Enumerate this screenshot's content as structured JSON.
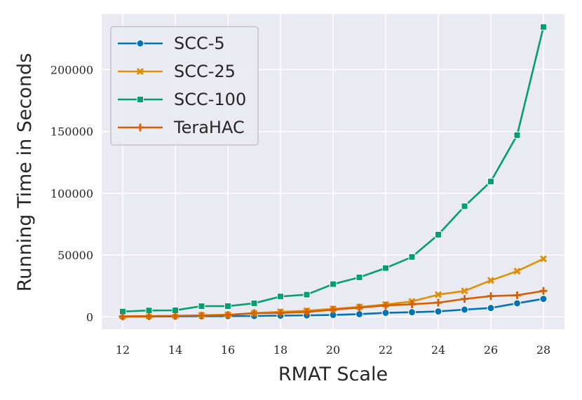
{
  "chart_data": {
    "type": "line",
    "title": "",
    "xlabel": "RMAT Scale",
    "ylabel": "Running Time in Seconds",
    "xlim": [
      11.2,
      28.8
    ],
    "ylim": [
      -10000,
      245000
    ],
    "xticks": [
      12,
      14,
      16,
      18,
      20,
      22,
      24,
      26,
      28
    ],
    "yticks": [
      0,
      50000,
      100000,
      150000,
      200000
    ],
    "grid": true,
    "legend_position": "upper-left",
    "x": [
      12,
      13,
      14,
      15,
      16,
      17,
      18,
      19,
      20,
      21,
      22,
      23,
      24,
      25,
      26,
      27,
      28
    ],
    "series": [
      {
        "name": "SCC-5",
        "color": "#0173b2",
        "marker": "circle",
        "values": [
          200,
          300,
          400,
          500,
          600,
          700,
          1000,
          1200,
          1600,
          2200,
          3300,
          3800,
          4400,
          5900,
          7200,
          11000,
          14600
        ]
      },
      {
        "name": "SCC-25",
        "color": "#de8f05",
        "marker": "x",
        "values": [
          500,
          700,
          900,
          1300,
          1700,
          3000,
          4100,
          5000,
          6500,
          8000,
          10000,
          12500,
          18000,
          21000,
          29500,
          37000,
          47000
        ]
      },
      {
        "name": "SCC-100",
        "color": "#029e73",
        "marker": "square",
        "values": [
          4300,
          5200,
          5300,
          8700,
          8700,
          11000,
          16500,
          18000,
          26500,
          32000,
          39500,
          48500,
          66500,
          89500,
          109500,
          147000,
          234500
        ]
      },
      {
        "name": "TeraHAC",
        "color": "#d55e00",
        "marker": "plus",
        "values": [
          300,
          500,
          700,
          1000,
          1500,
          3000,
          3200,
          4000,
          5800,
          7500,
          9200,
          10200,
          11500,
          14500,
          16800,
          17500,
          21000
        ]
      }
    ]
  }
}
